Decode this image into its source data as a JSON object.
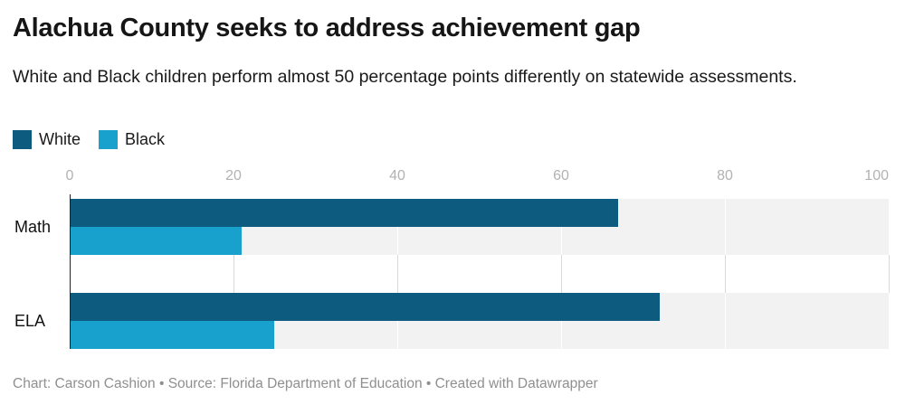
{
  "header": {
    "title": "Alachua County seeks to address achievement gap",
    "subtitle": "White and Black children perform almost 50 percentage points differently on statewide assessments."
  },
  "legend": {
    "items": [
      {
        "label": "White",
        "color": "#0d5c80"
      },
      {
        "label": "Black",
        "color": "#18a1cd"
      }
    ]
  },
  "chart_data": {
    "type": "bar",
    "orientation": "horizontal",
    "title": "Alachua County seeks to address achievement gap",
    "subtitle": "White and Black children perform almost 50 percentage points differently on statewide assessments.",
    "categories": [
      "Math",
      "ELA"
    ],
    "series": [
      {
        "name": "White",
        "color": "#0d5c80",
        "values": [
          67,
          72
        ]
      },
      {
        "name": "Black",
        "color": "#18a1cd",
        "values": [
          21,
          25
        ]
      }
    ],
    "xlim": [
      0,
      100
    ],
    "ticks": [
      "0",
      "20",
      "40",
      "60",
      "80",
      "100"
    ],
    "grid": "vertical",
    "legend_position": "top-left",
    "unit": "percentage points"
  },
  "footer": {
    "text": "Chart: Carson Cashion • Source: Florida Department of Education • Created with Datawrapper"
  },
  "colors": {
    "series-white": "#0d5c80",
    "series-black": "#18a1cd",
    "track": "#f2f2f2",
    "grid": "#d9d9d9",
    "tick-label": "#b2b2b2",
    "footer-text": "#8f8f8f"
  }
}
